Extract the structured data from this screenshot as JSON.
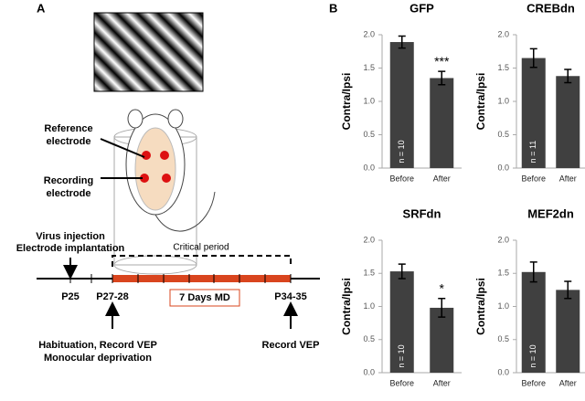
{
  "panel_labels": [
    "A",
    "B"
  ],
  "diagram": {
    "reference_electrode": [
      "Reference",
      "electrode"
    ],
    "recording_electrode": [
      "Recording",
      "electrode"
    ],
    "virus_injection": "Virus injection",
    "electrode_implantation": "Electrode implantation",
    "critical_period": "Critical period",
    "p25": "P25",
    "p27_28": "P27-28",
    "md": "7 Days MD",
    "p34_35": "P34-35",
    "habituation": "Habituation, Record VEP",
    "monocular_deprivation": "Monocular deprivation",
    "record_vep": "Record VEP"
  },
  "chart_data": [
    {
      "type": "bar",
      "title": "GFP",
      "y_label": "Contra/Ipsi",
      "categories": [
        "Before",
        "After"
      ],
      "values": [
        1.89,
        1.35
      ],
      "errors": [
        0.09,
        0.1
      ],
      "color": "#404040",
      "ylim": [
        0,
        2
      ],
      "yticks": [
        {
          "value": 0,
          "label": "0.0"
        },
        0.5,
        {
          "value": 1,
          "label": "1.0"
        },
        1.5,
        {
          "value": 2,
          "label": "2.0"
        }
      ],
      "n_label": "n = 10",
      "significance": "***"
    },
    {
      "type": "bar",
      "title": "CREBdn",
      "y_label": "Contra/Ipsi",
      "categories": [
        "Before",
        "After"
      ],
      "values": [
        1.65,
        1.38
      ],
      "errors": [
        0.14,
        0.1
      ],
      "color": "#404040",
      "ylim": [
        0,
        2
      ],
      "yticks": [
        {
          "value": 0,
          "label": "0.0"
        },
        0.5,
        {
          "value": 1,
          "label": "1.0"
        },
        1.5,
        {
          "value": 2,
          "label": "2.0"
        }
      ],
      "n_label": "n = 11"
    },
    {
      "type": "bar",
      "title": "SRFdn",
      "y_label": "Contra/Ipsi",
      "categories": [
        "Before",
        "After"
      ],
      "values": [
        1.53,
        0.98
      ],
      "errors": [
        0.11,
        0.14
      ],
      "color": "#404040",
      "ylim": [
        0,
        2
      ],
      "yticks": [
        {
          "value": 0,
          "label": "0.0"
        },
        0.5,
        {
          "value": 1,
          "label": "1.0"
        },
        1.5,
        {
          "value": 2,
          "label": "2.0"
        }
      ],
      "n_label": "n = 10",
      "significance": "*"
    },
    {
      "type": "bar",
      "title": "MEF2dn",
      "y_label": "Contra/Ipsi",
      "categories": [
        "Before",
        "After"
      ],
      "values": [
        1.52,
        1.25
      ],
      "errors": [
        0.15,
        0.13
      ],
      "color": "#404040",
      "ylim": [
        0,
        2
      ],
      "yticks": [
        {
          "value": 0,
          "label": "0.0"
        },
        0.5,
        {
          "value": 1,
          "label": "1.0"
        },
        1.5,
        {
          "value": 2,
          "label": "2.0"
        }
      ],
      "n_label": "n = 10"
    }
  ]
}
